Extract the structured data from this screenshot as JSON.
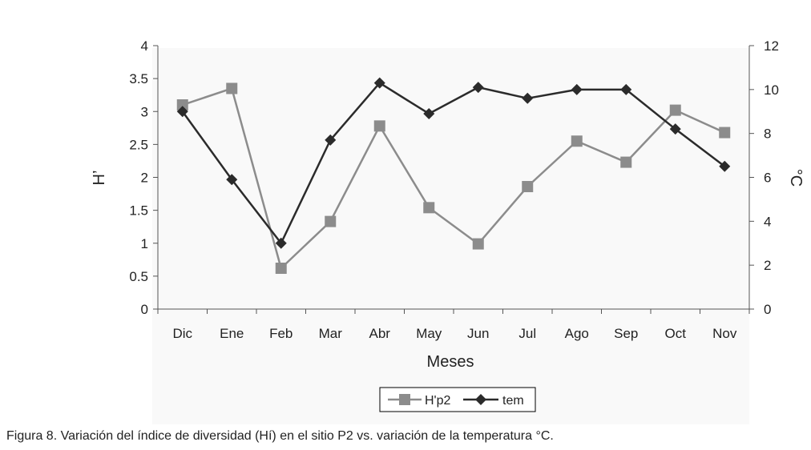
{
  "chart_data": {
    "type": "line",
    "categories": [
      "Dic",
      "Ene",
      "Feb",
      "Mar",
      "Abr",
      "May",
      "Jun",
      "Jul",
      "Ago",
      "Sep",
      "Oct",
      "Nov"
    ],
    "xlabel": "Meses",
    "ylabel": "H’",
    "y2label": "°C",
    "ylim": [
      0,
      4
    ],
    "y2lim": [
      0,
      12
    ],
    "yticks": [
      "0",
      "0.5",
      "1",
      "1.5",
      "2",
      "2.5",
      "3",
      "3.5",
      "4"
    ],
    "y2ticks": [
      "0",
      "2",
      "4",
      "6",
      "8",
      "10",
      "12"
    ],
    "series": [
      {
        "name": "H'p2",
        "axis": "left",
        "marker": "square",
        "color": "#8c8c8c",
        "values": [
          3.1,
          3.35,
          0.62,
          1.33,
          2.78,
          1.54,
          0.99,
          1.86,
          2.55,
          2.23,
          3.02,
          2.68
        ]
      },
      {
        "name": "tem",
        "axis": "right",
        "marker": "diamond",
        "color": "#2b2b2b",
        "values": [
          9.0,
          5.9,
          3.0,
          7.7,
          10.3,
          8.9,
          10.1,
          9.6,
          10.0,
          10.0,
          8.2,
          6.5
        ]
      }
    ],
    "legend_position": "bottom",
    "grid": false
  },
  "caption": "Figura 8. Variación del índice de diversidad (Hí) en el sitio P2 vs. variación de la temperatura °C."
}
